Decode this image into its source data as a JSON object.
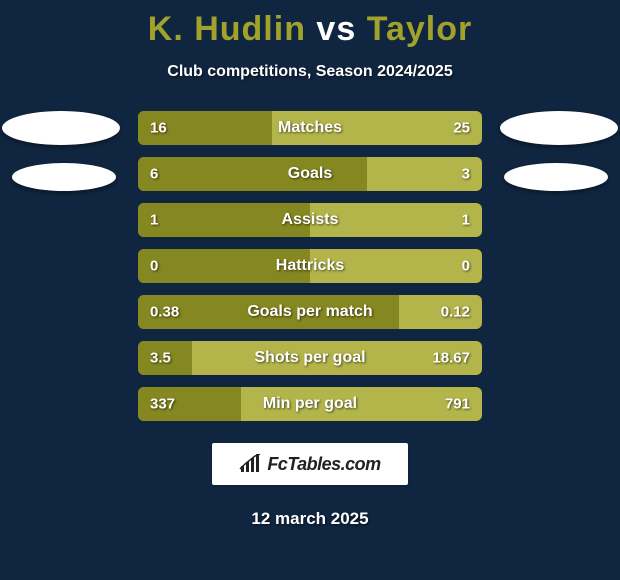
{
  "colors": {
    "background": "#10253f",
    "player_left": "#a0a22c",
    "player_right": "#a0a22c",
    "bar_track": "#b3b54a",
    "bar_fill": "#858720",
    "title_left": "#a0a22c",
    "title_vs": "#ffffff",
    "title_right": "#a0a22c"
  },
  "title": {
    "left": "K. Hudlin",
    "vs": "vs",
    "right": "Taylor"
  },
  "subtitle": "Club competitions, Season 2024/2025",
  "rows": [
    {
      "label": "Matches",
      "left_text": "16",
      "right_text": "25",
      "left_pct": 39.0
    },
    {
      "label": "Goals",
      "left_text": "6",
      "right_text": "3",
      "left_pct": 66.7
    },
    {
      "label": "Assists",
      "left_text": "1",
      "right_text": "1",
      "left_pct": 50.0
    },
    {
      "label": "Hattricks",
      "left_text": "0",
      "right_text": "0",
      "left_pct": 50.0
    },
    {
      "label": "Goals per match",
      "left_text": "0.38",
      "right_text": "0.12",
      "left_pct": 76.0
    },
    {
      "label": "Shots per goal",
      "left_text": "3.5",
      "right_text": "18.67",
      "left_pct": 15.8
    },
    {
      "label": "Min per goal",
      "left_text": "337",
      "right_text": "791",
      "left_pct": 29.9
    }
  ],
  "brand": "FcTables.com",
  "date": "12 march 2025"
}
